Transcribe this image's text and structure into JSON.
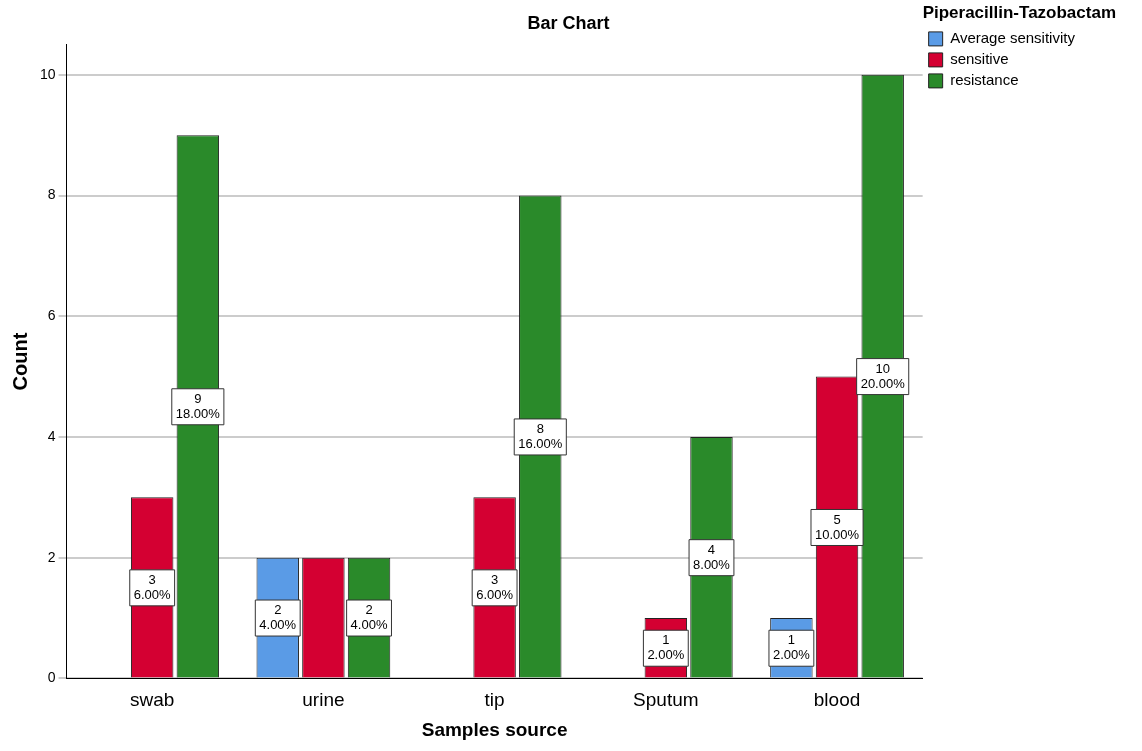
{
  "chart_data": {
    "type": "bar",
    "title": "Bar Chart",
    "xlabel": "Samples source",
    "ylabel": "Count",
    "legend_title": "Piperacillin-Tazobactam",
    "categories": [
      "swab",
      "urine",
      "tip",
      "Sputum",
      "blood"
    ],
    "series": [
      {
        "name": "Average sensitivity",
        "color": "#5a9be6",
        "values": [
          null,
          2,
          null,
          null,
          1
        ],
        "value_labels": [
          null,
          "2 4.00%",
          null,
          null,
          "1 2.00%"
        ]
      },
      {
        "name": "sensitive",
        "color": "#d40032",
        "values": [
          3,
          2,
          3,
          1,
          5
        ],
        "value_labels": [
          "3 6.00%",
          null,
          "3 6.00%",
          "1 2.00%",
          "5 10.00%"
        ]
      },
      {
        "name": "resistance",
        "color": "#2a8a2a",
        "values": [
          9,
          2,
          8,
          4,
          10
        ],
        "value_labels": [
          "9 18.00%",
          "2 4.00%",
          "8 16.00%",
          "4 8.00%",
          "10 20.00%"
        ]
      }
    ],
    "ylim": [
      0,
      10.5
    ],
    "yticks": [
      0,
      2,
      4,
      6,
      8,
      10
    ],
    "grid": "y",
    "legend": "top right"
  }
}
